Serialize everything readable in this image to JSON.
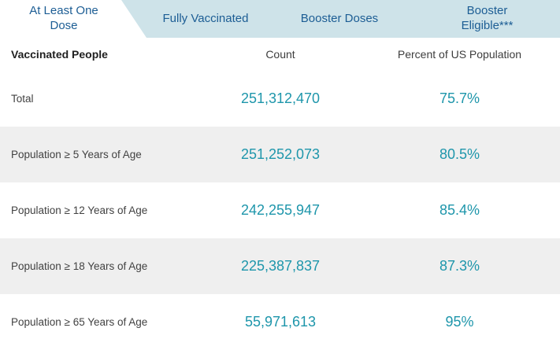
{
  "tabs": [
    {
      "label": "At Least One Dose",
      "active": true
    },
    {
      "label": "Fully Vaccinated",
      "active": false
    },
    {
      "label": "Booster Doses",
      "active": false
    },
    {
      "label": "Booster Eligible***",
      "active": false
    }
  ],
  "table": {
    "headers": [
      "Vaccinated People",
      "Count",
      "Percent of US Population"
    ],
    "rows": [
      {
        "label": "Total",
        "count": "251,312,470",
        "percent": "75.7%"
      },
      {
        "label": "Population ≥ 5 Years of Age",
        "count": "251,252,073",
        "percent": "80.5%"
      },
      {
        "label": "Population ≥ 12 Years of Age",
        "count": "242,255,947",
        "percent": "85.4%"
      },
      {
        "label": "Population ≥ 18 Years of Age",
        "count": "225,387,837",
        "percent": "87.3%"
      },
      {
        "label": "Population ≥ 65 Years of Age",
        "count": "55,971,613",
        "percent": "95%"
      }
    ]
  },
  "colors": {
    "tab_bar_bg": "#cee3e9",
    "tab_text": "#1c5d94",
    "value_teal": "#1e96ab",
    "stripe_gray": "#efefef"
  }
}
